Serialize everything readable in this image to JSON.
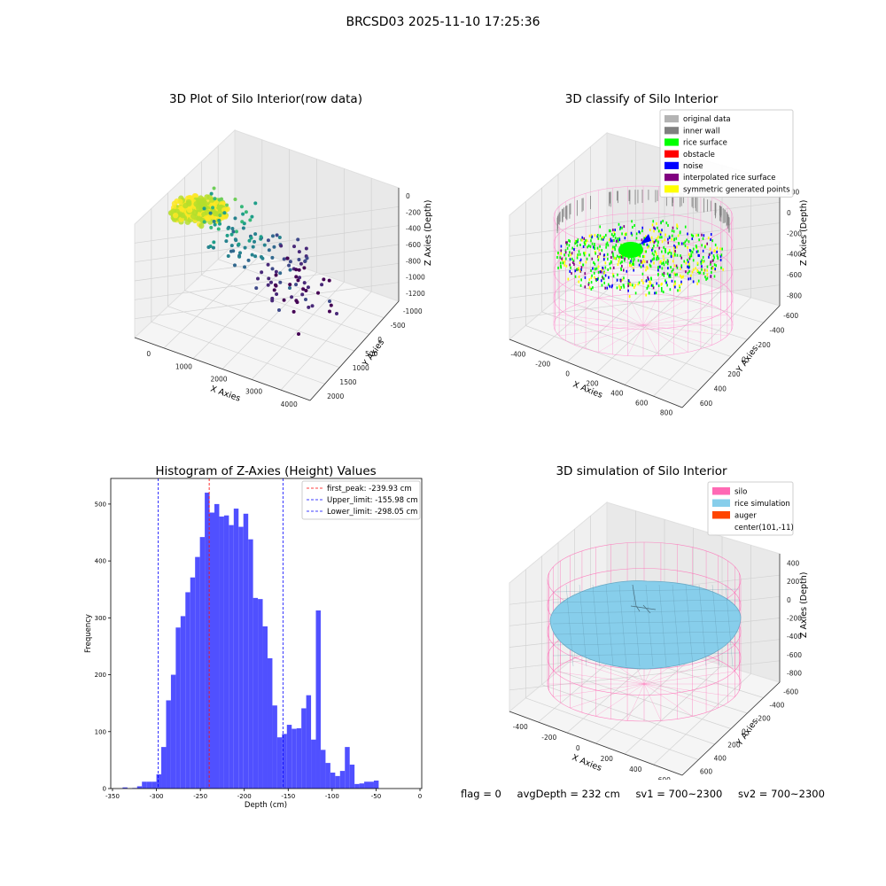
{
  "figure": {
    "suptitle": "BRCSD03 2025-11-10 17:25:36",
    "footer": {
      "flag": "flag = 0",
      "avg": "avgDepth = 232 cm",
      "sv1": "sv1 = 700~2300",
      "sv2": "sv2 = 700~2300"
    }
  },
  "chart_data": [
    {
      "type": "scatter",
      "projection": "3d",
      "title": "3D Plot of Silo Interior(row data)",
      "xlabel": "X Axies",
      "ylabel": "Y Axies",
      "zlabel": "Z Axies (Depth)",
      "xticks": [
        "0",
        "1000",
        "2000",
        "3000",
        "4000"
      ],
      "yticks": [
        "-1000",
        "-500",
        "0",
        "500",
        "1000",
        "1500",
        "2000"
      ],
      "zticks": [
        "0",
        "-200",
        "-400",
        "-600",
        "-800",
        "-1000",
        "-1200"
      ],
      "colormap": "viridis"
    },
    {
      "type": "scatter",
      "projection": "3d",
      "title": "3D classify of Silo Interior",
      "xlabel": "X Axies",
      "ylabel": "Y Axies",
      "zlabel": "Z Axies (Depth)",
      "xticks": [
        "-400",
        "-200",
        "0",
        "200",
        "400",
        "600",
        "800"
      ],
      "yticks": [
        "-600",
        "-400",
        "-200",
        "0",
        "200",
        "400",
        "600"
      ],
      "zticks": [
        "200",
        "0",
        "-200",
        "-400",
        "-600",
        "-800"
      ],
      "legend": [
        {
          "label": "original data",
          "color": "#b3b3b3"
        },
        {
          "label": "inner wall",
          "color": "#808080"
        },
        {
          "label": "rice surface",
          "color": "#00ff00"
        },
        {
          "label": "obstacle",
          "color": "#ff0000"
        },
        {
          "label": "noise",
          "color": "#0000ff"
        },
        {
          "label": "interpolated rice surface",
          "color": "#800080"
        },
        {
          "label": "symmetric generated points",
          "color": "#ffff00"
        }
      ],
      "legend_loc": "upper right"
    },
    {
      "type": "bar",
      "title": "Histogram of Z-Axies (Height) Values",
      "xlabel": "Depth (cm)",
      "ylabel": "Frequency",
      "xlim": [
        -352,
        2
      ],
      "ylim": [
        0,
        545
      ],
      "xticks": [
        -350,
        -300,
        -250,
        -200,
        -150,
        -100,
        -50,
        0
      ],
      "yticks": [
        0,
        100,
        200,
        300,
        400,
        500
      ],
      "bin_width": 5.5,
      "bins": [
        [
          -338.5,
          2
        ],
        [
          -333,
          0
        ],
        [
          -327.5,
          1
        ],
        [
          -322,
          4
        ],
        [
          -316.5,
          12
        ],
        [
          -311,
          12
        ],
        [
          -305.5,
          12
        ],
        [
          -300,
          25
        ],
        [
          -294.5,
          73
        ],
        [
          -289,
          155
        ],
        [
          -283.5,
          200
        ],
        [
          -278,
          283
        ],
        [
          -272.5,
          303
        ],
        [
          -267,
          345
        ],
        [
          -261.5,
          371
        ],
        [
          -256,
          407
        ],
        [
          -250.5,
          442
        ],
        [
          -245,
          520
        ],
        [
          -239.5,
          485
        ],
        [
          -234,
          500
        ],
        [
          -228.5,
          478
        ],
        [
          -223,
          480
        ],
        [
          -217.5,
          463
        ],
        [
          -212,
          492
        ],
        [
          -206.5,
          460
        ],
        [
          -201,
          483
        ],
        [
          -195.5,
          438
        ],
        [
          -190,
          335
        ],
        [
          -184.5,
          333
        ],
        [
          -179,
          285
        ],
        [
          -173.5,
          229
        ],
        [
          -168,
          146
        ],
        [
          -162.5,
          90
        ],
        [
          -157,
          96
        ],
        [
          -151.5,
          112
        ],
        [
          -146,
          105
        ],
        [
          -140.5,
          106
        ],
        [
          -135,
          141
        ],
        [
          -129.5,
          164
        ],
        [
          -124,
          86
        ],
        [
          -118.5,
          313
        ],
        [
          -113,
          68
        ],
        [
          -107.5,
          45
        ],
        [
          -102,
          28
        ],
        [
          -96.5,
          22
        ],
        [
          -91,
          31
        ],
        [
          -85.5,
          73
        ],
        [
          -80,
          42
        ],
        [
          -74.5,
          8
        ],
        [
          -69,
          9
        ],
        [
          -63.5,
          12
        ],
        [
          -58,
          12
        ],
        [
          -52.5,
          14
        ]
      ],
      "bar_color": "#5050ff",
      "vlines": [
        {
          "label": "first_peak: -239.93 cm",
          "x": -239.93,
          "color": "#ff0000"
        },
        {
          "label": "Upper_limit: -155.98 cm",
          "x": -155.98,
          "color": "#0000ff"
        },
        {
          "label": "Lower_limit: -298.05 cm",
          "x": -298.05,
          "color": "#0000ff"
        }
      ],
      "legend_loc": "upper right"
    },
    {
      "type": "surface",
      "projection": "3d",
      "title": "3D simulation of Silo Interior",
      "xlabel": "X Axies",
      "ylabel": "Y Axies",
      "zlabel": "Z Axies (Depth)",
      "xticks": [
        "-400",
        "-200",
        "0",
        "200",
        "400",
        "600"
      ],
      "yticks": [
        "-600",
        "-400",
        "-200",
        "0",
        "200",
        "400",
        "600"
      ],
      "zticks": [
        "400",
        "200",
        "0",
        "-200",
        "-400",
        "-600",
        "-800"
      ],
      "legend": [
        {
          "label": "silo",
          "color": "#ff69b4"
        },
        {
          "label": "rice simulation",
          "color": "#87ceeb"
        },
        {
          "label": "auger",
          "color": "#ff4500"
        },
        {
          "label": "center(101,-11)",
          "color": "none"
        }
      ],
      "legend_loc": "upper right"
    }
  ]
}
